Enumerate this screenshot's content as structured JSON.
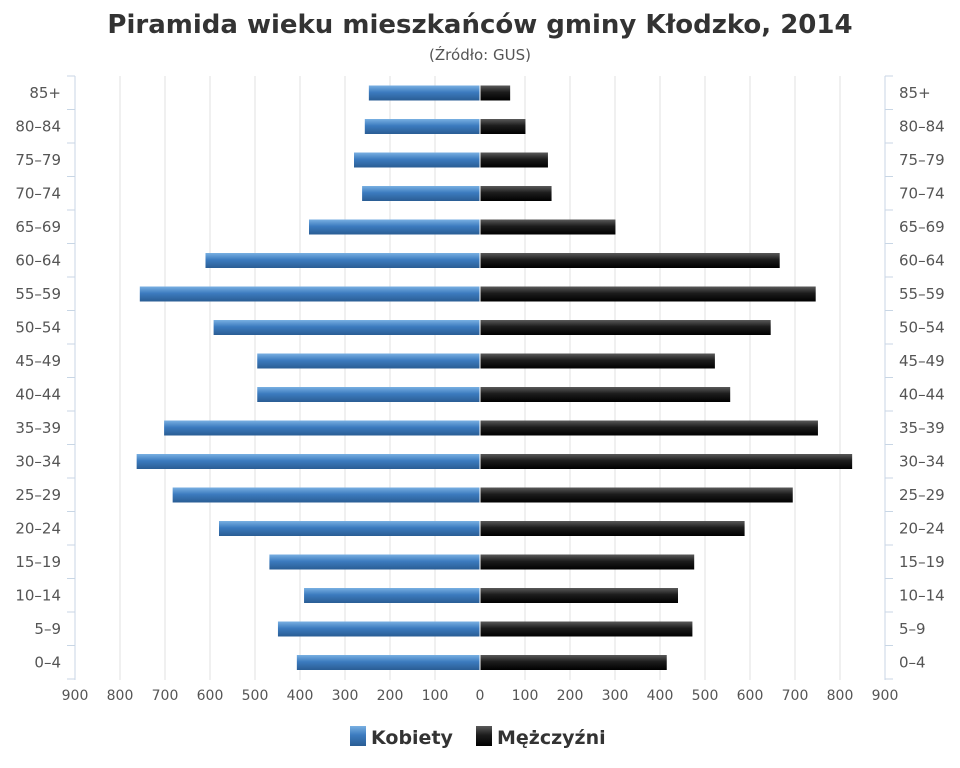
{
  "chart_data": {
    "type": "bar",
    "orientation": "horizontal-pyramid",
    "title": "Piramida wieku mieszkańców gminy Kłodzko, 2014",
    "subtitle": "(Źródło: GUS)",
    "categories": [
      "85+",
      "80–84",
      "75–79",
      "70–74",
      "65–69",
      "60–64",
      "55–59",
      "50–54",
      "45–49",
      "40–44",
      "35–39",
      "30–34",
      "25–29",
      "20–24",
      "15–19",
      "10–14",
      "5–9",
      "0–4"
    ],
    "series": [
      {
        "name": "Kobiety",
        "values": [
          247,
          256,
          280,
          262,
          380,
          610,
          756,
          592,
          495,
          495,
          702,
          763,
          683,
          580,
          468,
          391,
          449,
          407
        ]
      },
      {
        "name": "Mężczyźni",
        "values": [
          67,
          101,
          151,
          159,
          301,
          666,
          746,
          646,
          522,
          556,
          751,
          827,
          695,
          588,
          476,
          440,
          472,
          415
        ]
      }
    ],
    "x_tick_labels": [
      "900",
      "800",
      "700",
      "600",
      "500",
      "400",
      "300",
      "200",
      "100",
      "0",
      "100",
      "200",
      "300",
      "400",
      "500",
      "600",
      "700",
      "800",
      "900"
    ],
    "xlim": [
      -900,
      900
    ],
    "grid": true,
    "legend_position": "bottom-center",
    "colors": {
      "Kobiety": "#3a74b1",
      "Mężczyźni": "#1f1f1f"
    }
  }
}
